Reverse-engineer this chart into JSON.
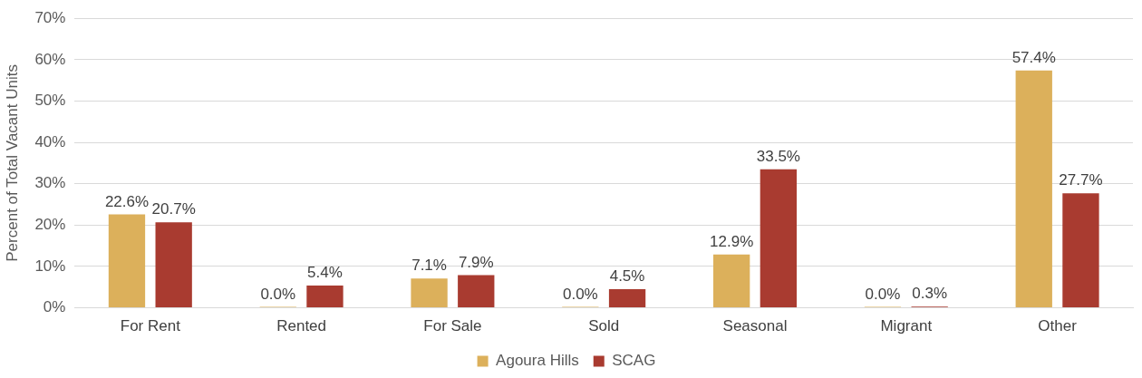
{
  "chart_data": {
    "type": "bar",
    "ylabel": "Percent of Total Vacant Units",
    "categories": [
      "For Rent",
      "Rented",
      "For Sale",
      "Sold",
      "Seasonal",
      "Migrant",
      "Other"
    ],
    "series": [
      {
        "name": "Agoura Hills",
        "color": "#dcb05b",
        "values": [
          22.6,
          0,
          7.1,
          0,
          12.9,
          0,
          57.4
        ],
        "value_labels": [
          "22.6%",
          "0.0%",
          "7.1%",
          "0.0%",
          "12.9%",
          "0.0%",
          "57.4%"
        ]
      },
      {
        "name": "SCAG",
        "color": "#a93b30",
        "values": [
          20.7,
          5.4,
          7.9,
          4.5,
          33.5,
          0.3,
          27.7
        ],
        "value_labels": [
          "20.7%",
          "5.4%",
          "7.9%",
          "4.5%",
          "33.5%",
          "0.3%",
          "27.7%"
        ]
      }
    ],
    "ylim": [
      0,
      70
    ],
    "yticks": [
      {
        "value": 0,
        "label": "0%"
      },
      {
        "value": 10,
        "label": "10%"
      },
      {
        "value": 20,
        "label": "20%"
      },
      {
        "value": 30,
        "label": "30%"
      },
      {
        "value": 40,
        "label": "40%"
      },
      {
        "value": 50,
        "label": "50%"
      },
      {
        "value": 60,
        "label": "60%"
      },
      {
        "value": 70,
        "label": "70%"
      }
    ],
    "grid": "y",
    "legend": "bottom"
  }
}
